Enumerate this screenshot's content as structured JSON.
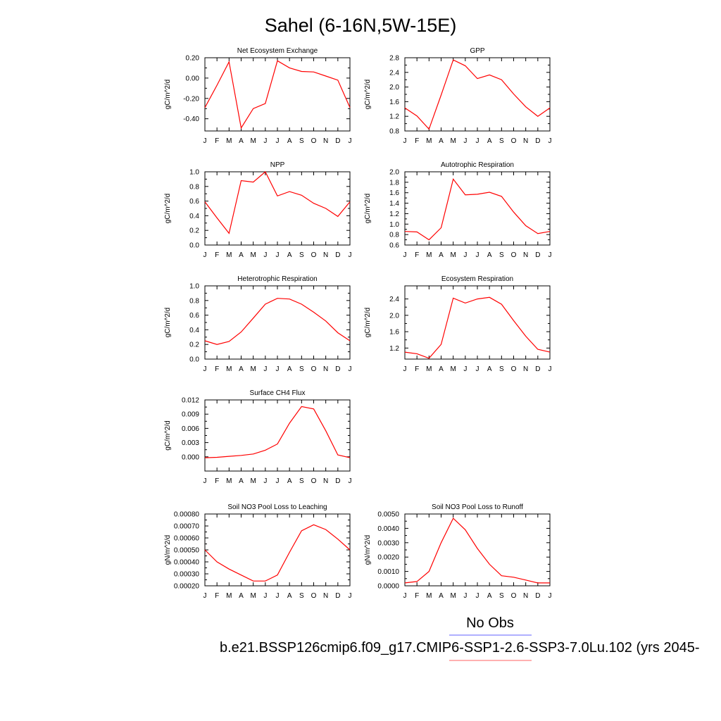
{
  "title": "Sahel (6-16N,5W-15E)",
  "legend": {
    "obs_label": "No Obs",
    "case_label": "b.e21.BSSP126cmip6.f09_g17.CMIP6-SSP1-2.6-SSP3-7.0Lu.102 (yrs 2045-",
    "obs_color": "#8080ff",
    "case_color": "#ff8080"
  },
  "colors": {
    "series": "#ff0000",
    "axis": "#000000"
  },
  "chart_data": [
    {
      "type": "line",
      "title": "Net Ecosystem Exchange",
      "ylabel": "gC/m^2/d",
      "x": [
        "J",
        "F",
        "M",
        "A",
        "M",
        "J",
        "J",
        "A",
        "S",
        "O",
        "N",
        "D",
        "J"
      ],
      "ylim": [
        -0.52,
        0.2
      ],
      "yticks": [
        0.2,
        0.0,
        -0.2,
        -0.4
      ],
      "ytick_labels": [
        "0.20",
        "0.00",
        "-0.20",
        "-0.40"
      ],
      "series": [
        {
          "values": [
            -0.29,
            -0.07,
            0.16,
            -0.49,
            -0.3,
            -0.25,
            0.17,
            0.1,
            0.065,
            0.06,
            0.02,
            -0.02,
            -0.29
          ]
        }
      ]
    },
    {
      "type": "line",
      "title": "GPP",
      "ylabel": "gC/m^2/d",
      "x": [
        "J",
        "F",
        "M",
        "A",
        "M",
        "J",
        "J",
        "A",
        "S",
        "O",
        "N",
        "D",
        "J"
      ],
      "ylim": [
        0.8,
        2.8
      ],
      "yticks": [
        2.8,
        2.4,
        2.0,
        1.6,
        1.2,
        0.8
      ],
      "ytick_labels": [
        "2.8",
        "2.4",
        "2.0",
        "1.6",
        "1.2",
        "0.8"
      ],
      "series": [
        {
          "values": [
            1.43,
            1.21,
            0.85,
            1.78,
            2.74,
            2.58,
            2.23,
            2.33,
            2.2,
            1.81,
            1.46,
            1.2,
            1.43
          ]
        }
      ]
    },
    {
      "type": "line",
      "title": "NPP",
      "ylabel": "gC/m^2/d",
      "x": [
        "J",
        "F",
        "M",
        "A",
        "M",
        "J",
        "J",
        "A",
        "S",
        "O",
        "N",
        "D",
        "J"
      ],
      "ylim": [
        0.0,
        1.0
      ],
      "yticks": [
        1.0,
        0.8,
        0.6,
        0.4,
        0.2,
        0.0
      ],
      "ytick_labels": [
        "1.0",
        "0.8",
        "0.6",
        "0.4",
        "0.2",
        "0.0"
      ],
      "series": [
        {
          "values": [
            0.59,
            0.37,
            0.16,
            0.88,
            0.86,
            1.0,
            0.67,
            0.73,
            0.68,
            0.57,
            0.5,
            0.39,
            0.59
          ]
        }
      ]
    },
    {
      "type": "line",
      "title": "Autotrophic Respiration",
      "ylabel": "gC/m^2/d",
      "x": [
        "J",
        "F",
        "M",
        "A",
        "M",
        "J",
        "J",
        "A",
        "S",
        "O",
        "N",
        "D",
        "J"
      ],
      "ylim": [
        0.6,
        2.0
      ],
      "yticks": [
        2.0,
        1.8,
        1.6,
        1.4,
        1.2,
        1.0,
        0.8,
        0.6
      ],
      "ytick_labels": [
        "2.0",
        "1.8",
        "1.6",
        "1.4",
        "1.2",
        "1.0",
        "0.8",
        "0.6"
      ],
      "series": [
        {
          "values": [
            0.86,
            0.85,
            0.7,
            0.93,
            1.86,
            1.56,
            1.57,
            1.61,
            1.53,
            1.23,
            0.97,
            0.82,
            0.86
          ]
        }
      ]
    },
    {
      "type": "line",
      "title": "Heterotrophic Respiration",
      "ylabel": "gC/m^2/d",
      "x": [
        "J",
        "F",
        "M",
        "A",
        "M",
        "J",
        "J",
        "A",
        "S",
        "O",
        "N",
        "D",
        "J"
      ],
      "ylim": [
        0.0,
        1.0
      ],
      "yticks": [
        1.0,
        0.8,
        0.6,
        0.4,
        0.2,
        0.0
      ],
      "ytick_labels": [
        "1.0",
        "0.8",
        "0.6",
        "0.4",
        "0.2",
        "0.0"
      ],
      "series": [
        {
          "values": [
            0.25,
            0.2,
            0.24,
            0.37,
            0.56,
            0.75,
            0.83,
            0.82,
            0.75,
            0.64,
            0.52,
            0.36,
            0.25
          ]
        }
      ]
    },
    {
      "type": "line",
      "title": "Ecosystem Respiration",
      "ylabel": "gC/m^2/d",
      "x": [
        "J",
        "F",
        "M",
        "A",
        "M",
        "J",
        "J",
        "A",
        "S",
        "O",
        "N",
        "D",
        "J"
      ],
      "ylim": [
        0.93,
        2.72
      ],
      "yticks": [
        2.4,
        2.0,
        1.6,
        1.2
      ],
      "ytick_labels": [
        "2.4",
        "2.0",
        "1.6",
        "1.2"
      ],
      "series": [
        {
          "values": [
            1.1,
            1.06,
            0.95,
            1.29,
            2.42,
            2.3,
            2.4,
            2.44,
            2.27,
            1.87,
            1.49,
            1.17,
            1.1
          ]
        }
      ]
    },
    {
      "type": "line",
      "title": "Surface CH4 Flux",
      "ylabel": "gC/m^2/d",
      "x": [
        "J",
        "F",
        "M",
        "A",
        "M",
        "J",
        "J",
        "A",
        "S",
        "O",
        "N",
        "D",
        "J"
      ],
      "ylim": [
        -0.003,
        0.012
      ],
      "yticks": [
        0.012,
        0.009,
        0.006,
        0.003,
        0.0
      ],
      "ytick_labels": [
        "0.012",
        "0.009",
        "0.006",
        "0.003",
        "0.000"
      ],
      "series": [
        {
          "values": [
            -0.0002,
            -0.0001,
            0.0001,
            0.0003,
            0.0006,
            0.0014,
            0.0027,
            0.0071,
            0.0106,
            0.0101,
            0.0055,
            0.0004,
            -0.0002
          ]
        }
      ]
    },
    {
      "type": "line",
      "title": "Soil NO3 Pool Loss to Leaching",
      "ylabel": "gN/m^2/d",
      "x": [
        "J",
        "F",
        "M",
        "A",
        "M",
        "J",
        "J",
        "A",
        "S",
        "O",
        "N",
        "D",
        "J"
      ],
      "ylim": [
        0.0002,
        0.0008
      ],
      "yticks": [
        0.0008,
        0.0007,
        0.0006,
        0.0005,
        0.0004,
        0.0003,
        0.0002
      ],
      "ytick_labels": [
        "0.00080",
        "0.00070",
        "0.00060",
        "0.00050",
        "0.00040",
        "0.00030",
        "0.00020"
      ],
      "series": [
        {
          "values": [
            0.0005,
            0.0004,
            0.00034,
            0.00029,
            0.00024,
            0.00024,
            0.00029,
            0.00048,
            0.00066,
            0.00071,
            0.00067,
            0.00059,
            0.0005
          ]
        }
      ]
    },
    {
      "type": "line",
      "title": "Soil NO3 Pool Loss to Runoff",
      "ylabel": "gN/m^2/d",
      "x": [
        "J",
        "F",
        "M",
        "A",
        "M",
        "J",
        "J",
        "A",
        "S",
        "O",
        "N",
        "D",
        "J"
      ],
      "ylim": [
        0.0,
        0.005
      ],
      "yticks": [
        0.005,
        0.004,
        0.003,
        0.002,
        0.001,
        0.0
      ],
      "ytick_labels": [
        "0.0050",
        "0.0040",
        "0.0030",
        "0.0020",
        "0.0010",
        "0.0000"
      ],
      "series": [
        {
          "values": [
            0.0002,
            0.0003,
            0.001,
            0.003,
            0.0047,
            0.0039,
            0.0026,
            0.0015,
            0.0007,
            0.0006,
            0.0004,
            0.0002,
            0.0002
          ]
        }
      ]
    }
  ]
}
